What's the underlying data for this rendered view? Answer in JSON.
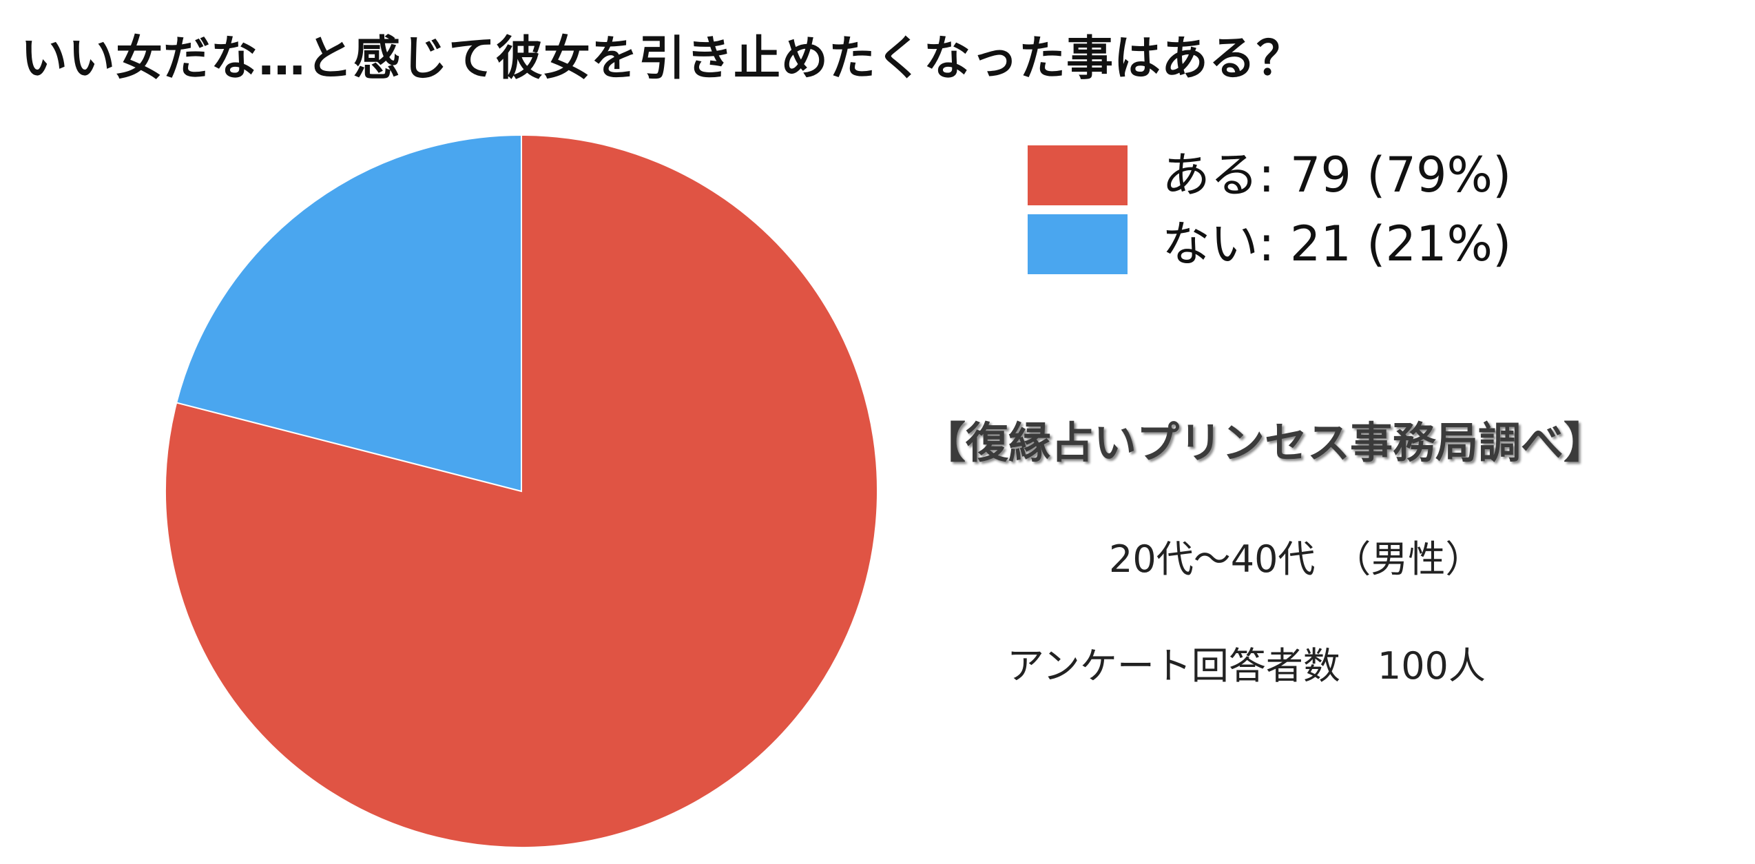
{
  "chart_data": {
    "type": "pie",
    "title": "いい女だな…と感じて彼女を引き止めたくなった事はある？",
    "categories": [
      "ある",
      "ない"
    ],
    "values": [
      79,
      21
    ],
    "percentages": [
      79,
      21
    ],
    "colors": [
      "#e05444",
      "#4aa6ef"
    ],
    "legend": [
      "ある: 79 (79%)",
      "ない: 21 (21%)"
    ],
    "legend_position": "top-right"
  },
  "source": "【復縁占いプリンセス事務局調べ】",
  "age_range": "20代～40代　（男性）",
  "respondents": "アンケート回答者数　100人"
}
